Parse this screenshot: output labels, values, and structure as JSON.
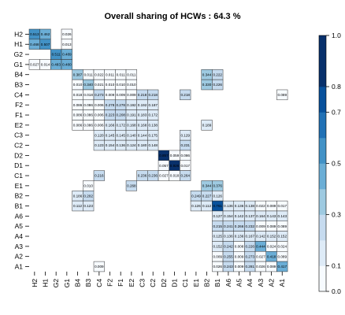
{
  "chart_data": {
    "type": "heatmap",
    "title": "Overall sharing of HCWs : 64.3 %",
    "row_labels": [
      "H2",
      "H1",
      "G2",
      "G1",
      "B4",
      "B3",
      "C4",
      "F2",
      "F1",
      "E2",
      "C3",
      "C2",
      "D2",
      "D1",
      "C1",
      "E1",
      "B2",
      "B1",
      "A6",
      "A5",
      "A4",
      "A3",
      "A2",
      "A1"
    ],
    "col_labels": [
      "H2",
      "H1",
      "G2",
      "G1",
      "B4",
      "B3",
      "C4",
      "F2",
      "F1",
      "E2",
      "C3",
      "C2",
      "D2",
      "D1",
      "C1",
      "E1",
      "B2",
      "B1",
      "A6",
      "A5",
      "A4",
      "A3",
      "A2",
      "A1"
    ],
    "cells": [
      [
        "H2",
        "H2",
        0.513
      ],
      [
        "H2",
        "H1",
        0.462
      ],
      [
        "H2",
        "G1",
        0.026
      ],
      [
        "H1",
        "H2",
        0.468
      ],
      [
        "H1",
        "H1",
        0.507
      ],
      [
        "H1",
        "G1",
        0.013
      ],
      [
        "G2",
        "G2",
        0.511
      ],
      [
        "G2",
        "G1",
        0.489
      ],
      [
        "G1",
        "H2",
        0.027
      ],
      [
        "G1",
        "H1",
        0.014
      ],
      [
        "G1",
        "G2",
        0.483
      ],
      [
        "G1",
        "G1",
        0.48
      ],
      [
        "B4",
        "B4",
        0.387
      ],
      [
        "B4",
        "B3",
        0.011
      ],
      [
        "B4",
        "C4",
        0.022
      ],
      [
        "B4",
        "F2",
        0.011
      ],
      [
        "B4",
        "F1",
        0.011
      ],
      [
        "B4",
        "E2",
        0.011
      ],
      [
        "B4",
        "B2",
        0.344
      ],
      [
        "B4",
        "B1",
        0.222
      ],
      [
        "B3",
        "B4",
        0.01
      ],
      [
        "B3",
        "B3",
        0.34
      ],
      [
        "B3",
        "C4",
        0.021
      ],
      [
        "B3",
        "F2",
        0.01
      ],
      [
        "B3",
        "F1",
        0.01
      ],
      [
        "B3",
        "E2",
        0.01
      ],
      [
        "B3",
        "B2",
        0.33
      ],
      [
        "B3",
        "B1",
        0.226
      ],
      [
        "C4",
        "B4",
        0.018
      ],
      [
        "C4",
        "B3",
        0.018
      ],
      [
        "C4",
        "C4",
        0.273
      ],
      [
        "C4",
        "F2",
        0.009
      ],
      [
        "C4",
        "F1",
        0.009
      ],
      [
        "C4",
        "E2",
        0.009
      ],
      [
        "C4",
        "C3",
        0.218
      ],
      [
        "C4",
        "C2",
        0.218
      ],
      [
        "C4",
        "C1",
        0.218
      ],
      [
        "C4",
        "A1",
        0.089
      ],
      [
        "F2",
        "B4",
        0.086
      ],
      [
        "F2",
        "B3",
        0.086
      ],
      [
        "F2",
        "C4",
        0.006
      ],
      [
        "F2",
        "F2",
        0.278
      ],
      [
        "F2",
        "F1",
        0.278
      ],
      [
        "F2",
        "E2",
        0.192
      ],
      [
        "F2",
        "C3",
        0.192
      ],
      [
        "F2",
        "C2",
        0.187
      ],
      [
        "F1",
        "B4",
        0.086
      ],
      [
        "F1",
        "B3",
        0.086
      ],
      [
        "F1",
        "C4",
        0.006
      ],
      [
        "F1",
        "F2",
        0.223
      ],
      [
        "F1",
        "F1",
        0.208
      ],
      [
        "F1",
        "E2",
        0.191
      ],
      [
        "F1",
        "C3",
        0.183
      ],
      [
        "F1",
        "C2",
        0.172
      ],
      [
        "E2",
        "B4",
        0.086
      ],
      [
        "E2",
        "B3",
        0.086
      ],
      [
        "E2",
        "C4",
        0.006
      ],
      [
        "E2",
        "F2",
        0.166
      ],
      [
        "E2",
        "F1",
        0.172
      ],
      [
        "E2",
        "E2",
        0.168
      ],
      [
        "E2",
        "C3",
        0.168
      ],
      [
        "E2",
        "C2",
        0.138
      ],
      [
        "E2",
        "B2",
        0.189
      ],
      [
        "C3",
        "C4",
        0.12
      ],
      [
        "C3",
        "F2",
        0.145
      ],
      [
        "C3",
        "F1",
        0.145
      ],
      [
        "C3",
        "E2",
        0.14
      ],
      [
        "C3",
        "C3",
        0.144
      ],
      [
        "C3",
        "C2",
        0.175
      ],
      [
        "C3",
        "C1",
        0.129
      ],
      [
        "C2",
        "C4",
        0.123
      ],
      [
        "C2",
        "F2",
        0.154
      ],
      [
        "C2",
        "F1",
        0.136
      ],
      [
        "C2",
        "E2",
        0.124
      ],
      [
        "C2",
        "C3",
        0.18
      ],
      [
        "C2",
        "C2",
        0.148
      ],
      [
        "C2",
        "C1",
        0.231
      ],
      [
        "D2",
        "D2",
        0.857
      ],
      [
        "D2",
        "D1",
        0.059
      ],
      [
        "D2",
        "C1",
        0.086
      ],
      [
        "D1",
        "D2",
        0.057
      ],
      [
        "D1",
        "D1",
        0.926
      ],
      [
        "D1",
        "C1",
        0.017
      ],
      [
        "C1",
        "C4",
        0.216
      ],
      [
        "C1",
        "C3",
        0.236
      ],
      [
        "C1",
        "C2",
        0.236
      ],
      [
        "C1",
        "D2",
        0.027
      ],
      [
        "C1",
        "D1",
        0.018
      ],
      [
        "C1",
        "C1",
        0.264
      ],
      [
        "E1",
        "B3",
        0.01
      ],
      [
        "E1",
        "E2",
        0.268
      ],
      [
        "E1",
        "B2",
        0.344
      ],
      [
        "E1",
        "B1",
        0.376
      ],
      [
        "B2",
        "B4",
        0.186
      ],
      [
        "B2",
        "B3",
        0.202
      ],
      [
        "B2",
        "E1",
        0.249
      ],
      [
        "B2",
        "B2",
        0.227
      ],
      [
        "B2",
        "B1",
        0.126
      ],
      [
        "B1",
        "B4",
        0.112
      ],
      [
        "B1",
        "B3",
        0.123
      ],
      [
        "B1",
        "E1",
        0.126
      ],
      [
        "B1",
        "B2",
        0.112
      ],
      [
        "B1",
        "B1",
        0.761
      ],
      [
        "B1",
        "A6",
        0.136
      ],
      [
        "B1",
        "A5",
        0.136
      ],
      [
        "B1",
        "A4",
        0.138
      ],
      [
        "B1",
        "A3",
        0.022
      ],
      [
        "B1",
        "A2",
        0.089
      ],
      [
        "B1",
        "A1",
        0.017
      ],
      [
        "A6",
        "B1",
        0.127
      ],
      [
        "A6",
        "A6",
        0.154
      ],
      [
        "A6",
        "A5",
        0.142
      ],
      [
        "A6",
        "A4",
        0.137
      ],
      [
        "A6",
        "A3",
        0.164
      ],
      [
        "A6",
        "A2",
        0.143
      ],
      [
        "A6",
        "A1",
        0.143
      ],
      [
        "A5",
        "B1",
        0.215
      ],
      [
        "A5",
        "A6",
        0.241
      ],
      [
        "A5",
        "A5",
        0.266
      ],
      [
        "A5",
        "A4",
        0.232
      ],
      [
        "A5",
        "A3",
        0.009
      ],
      [
        "A5",
        "A2",
        0.089
      ],
      [
        "A5",
        "A1",
        0.089
      ],
      [
        "A4",
        "B1",
        0.125
      ],
      [
        "A4",
        "A6",
        0.136
      ],
      [
        "A4",
        "A5",
        0.136
      ],
      [
        "A4",
        "A4",
        0.167
      ],
      [
        "A4",
        "A3",
        0.142
      ],
      [
        "A4",
        "A2",
        0.152
      ],
      [
        "A4",
        "A1",
        0.152
      ],
      [
        "A3",
        "B1",
        0.152
      ],
      [
        "A3",
        "A6",
        0.242
      ],
      [
        "A3",
        "A5",
        0.008
      ],
      [
        "A3",
        "A4",
        0.226
      ],
      [
        "A3",
        "A3",
        0.444
      ],
      [
        "A3",
        "A2",
        0.024
      ],
      [
        "A3",
        "A1",
        0.024
      ],
      [
        "A2",
        "B1",
        0.009
      ],
      [
        "A2",
        "A6",
        0.255
      ],
      [
        "A2",
        "A5",
        0.009
      ],
      [
        "A2",
        "A4",
        0.273
      ],
      [
        "A2",
        "A3",
        0.027
      ],
      [
        "A2",
        "A2",
        0.418
      ],
      [
        "A2",
        "A1",
        0.089
      ],
      [
        "A1",
        "C4",
        0.009
      ],
      [
        "A1",
        "B1",
        0.026
      ],
      [
        "A1",
        "A6",
        0.243
      ],
      [
        "A1",
        "A5",
        0.009
      ],
      [
        "A1",
        "A4",
        0.281
      ],
      [
        "A1",
        "A3",
        0.026
      ],
      [
        "A1",
        "A2",
        0.089
      ],
      [
        "A1",
        "A1",
        0.417
      ]
    ],
    "value_range": [
      0,
      1
    ],
    "colorbar": {
      "ticks": [
        "0.0",
        "0.1",
        "0.2",
        "0.3",
        "0.4",
        "0.5",
        "0.6",
        "0.7",
        "0.8",
        "0.9",
        "1.0"
      ],
      "tick_labels_shown": [
        "0.0",
        "0.1",
        "0.3",
        "0.5",
        "0.7",
        "0.8",
        "1.0"
      ],
      "tick_values": [
        0,
        0.1,
        0.3,
        0.5,
        0.7,
        0.8,
        1.0
      ],
      "band_values": [
        0,
        0.1,
        0.2,
        0.3,
        0.4,
        0.5,
        0.6,
        0.7,
        0.8,
        0.9
      ],
      "colors": [
        "#f7fbff",
        "#deebf7",
        "#c6dbef",
        "#9ecae1",
        "#6baed6",
        "#4292c6",
        "#2171b5",
        "#08519c",
        "#08306b",
        "#08306b"
      ]
    },
    "grid": true,
    "legend": "right"
  }
}
